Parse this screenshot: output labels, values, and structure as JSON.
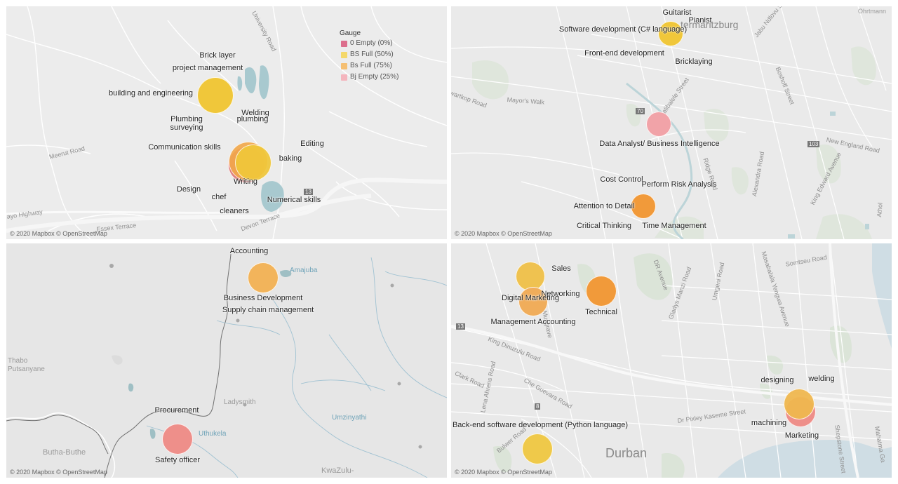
{
  "legend": {
    "title": "Gauge",
    "items": [
      {
        "label": "0 Empty (0%)",
        "color": "#dc6e8c"
      },
      {
        "label": "BS Full (50%)",
        "color": "#f4d86a"
      },
      {
        "label": "Bs Full (75%)",
        "color": "#f5bf72"
      },
      {
        "label": "Bj Empty (25%)",
        "color": "#f4b5bd"
      }
    ]
  },
  "credit": "© 2020 Mapbox © OpenStreetMap",
  "panels": [
    {
      "roads": [
        "University Road",
        "Meerut Road",
        "Devon Terrace",
        "Essex Terrace",
        "ayo Highway"
      ],
      "route": "13",
      "skills": [
        "Brick layer",
        "project management",
        "building and engineering",
        "Plumbing",
        "surveying",
        "Welding",
        "plumbing",
        "Communication skills",
        "Editing",
        "baking",
        "Writing",
        "Design",
        "chef",
        "cleaners",
        "Numerical skills"
      ]
    },
    {
      "places": [
        "termaritzburg",
        "Ohrtmann"
      ],
      "roads": [
        "Jabu Ndlovu St",
        "Boshoff Street",
        "Langalibalele Street",
        "Mayor's Walk",
        "wartkop Road",
        "New England Road",
        "Alexandra Road",
        "King Edward Avenue",
        "Ridge Road",
        "Athol"
      ],
      "routes": [
        "70",
        "103"
      ],
      "skills": [
        "Guitarist",
        "Pianist",
        "Software development (C# language)",
        "Front-end development",
        "Bricklaying",
        "Data Analyst/ Business Intelligence",
        "Cost Control",
        "Perform Risk Analysis",
        "Attention to Detail",
        "Critical Thinking",
        "Time Management"
      ]
    },
    {
      "places": [
        "Amajuba",
        "Thabo",
        "Putsanyane",
        "Ladysmith",
        "Uthukela",
        "Umzinyathi",
        "Butha-Buthe",
        "KwaZulu-"
      ],
      "skills": [
        "Accounting",
        "Business Development",
        "Supply chain management",
        "Procurement",
        "Safety officer"
      ]
    },
    {
      "places": [
        "Durban"
      ],
      "roads": [
        "DR Avenue",
        "Umgeni Road",
        "Somtseu Road",
        "Masabalala Yengwa Avenue",
        "Gladys Manzi Road",
        "King Dinuzulu Road",
        "Clark Road",
        "Che Guevara Road",
        "Lena Ahrens Road",
        "Bulwer Road",
        "Dr Pixley Kaseme Street",
        "Shepstone Street",
        "Mahatma Ga",
        "Musgrave"
      ],
      "routes": [
        "13",
        "8"
      ],
      "skills": [
        "Sales",
        "Networking",
        "Digital Marketing",
        "Technical",
        "Management Accounting",
        "designing",
        "welding",
        "machining",
        "Marketing",
        "Back-end software development (Python language)"
      ]
    }
  ],
  "gauge_points": [
    {
      "panel": 1,
      "skill_index": 2,
      "gauge": "BS Full (50%)"
    },
    {
      "panel": 1,
      "skill_index": 7,
      "gauge": "Bs Full (75%)"
    },
    {
      "panel": 1,
      "skill_index": 10,
      "gauge": "BS Full (50%)"
    },
    {
      "panel": 2,
      "skill_index": 2,
      "gauge": "BS Full (50%)"
    },
    {
      "panel": 2,
      "skill_index": 5,
      "gauge": "Bj Empty (25%)"
    },
    {
      "panel": 2,
      "skill_index": 8,
      "gauge": "Bs Full (75%)"
    },
    {
      "panel": 3,
      "skill_index": 1,
      "gauge": "Bs Full (75%)"
    },
    {
      "panel": 3,
      "skill_index": 4,
      "gauge": "Bj Empty (25%)"
    },
    {
      "panel": 4,
      "skill_index": 0,
      "gauge": "BS Full (50%)"
    },
    {
      "panel": 4,
      "skill_index": 2,
      "gauge": "Bs Full (75%)"
    },
    {
      "panel": 4,
      "skill_index": 3,
      "gauge": "Bs Full (75%)"
    },
    {
      "panel": 4,
      "skill_index": 6,
      "gauge": "BS Full (50%)"
    },
    {
      "panel": 4,
      "skill_index": 8,
      "gauge": "Bj Empty (25%)"
    },
    {
      "panel": 4,
      "skill_index": 9,
      "gauge": "BS Full (50%)"
    }
  ]
}
